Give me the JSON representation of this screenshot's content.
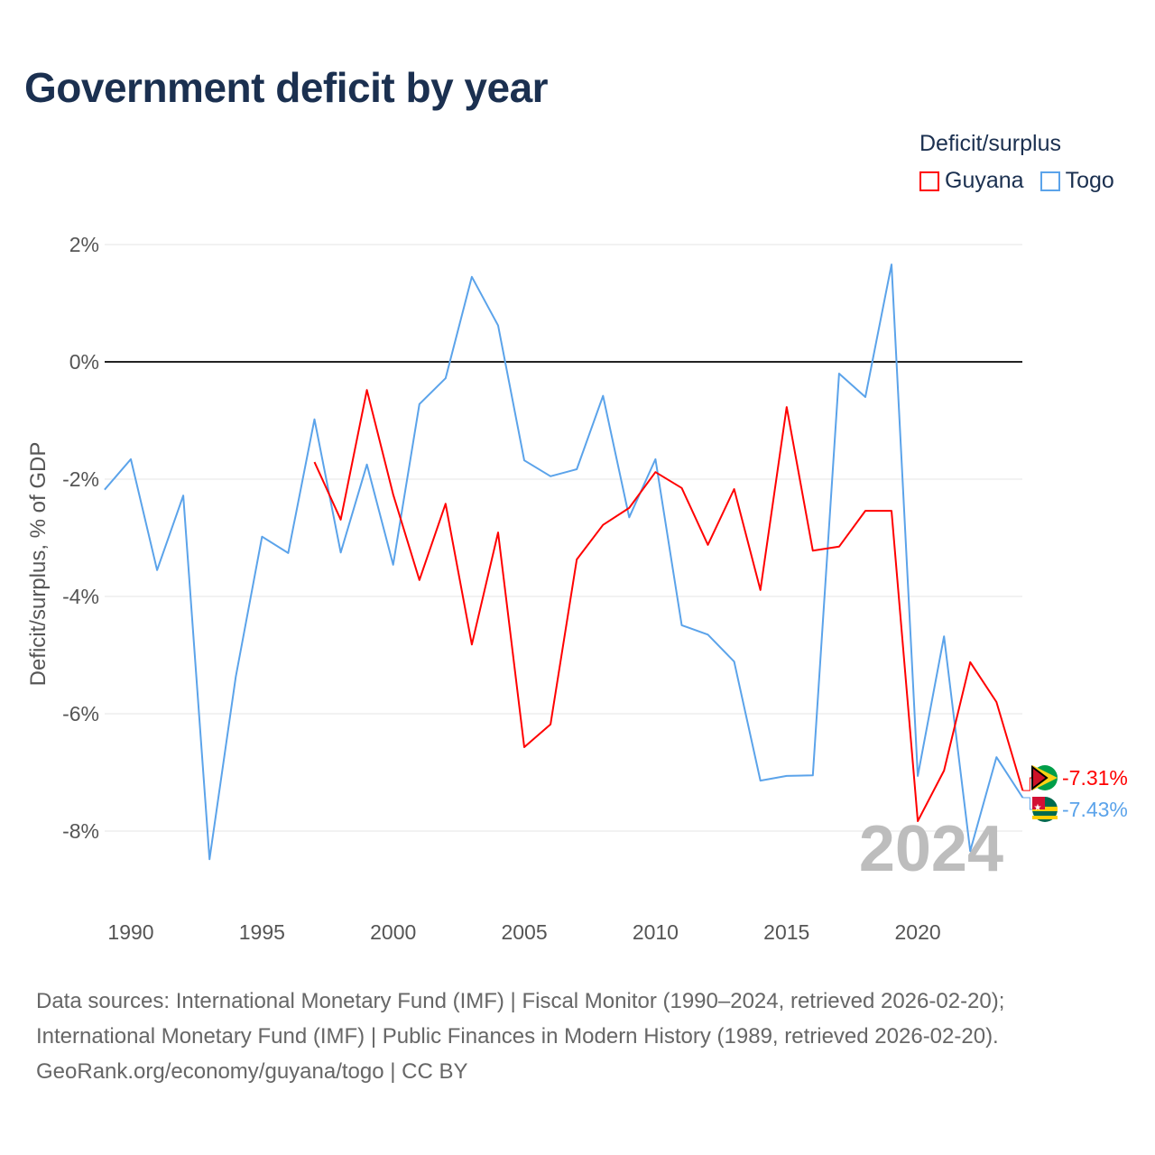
{
  "title": "Government deficit by year",
  "legend": {
    "title": "Deficit/surplus",
    "items": [
      {
        "name": "Guyana",
        "color": "#ff0000"
      },
      {
        "name": "Togo",
        "color": "#5ba3ea"
      }
    ]
  },
  "chart_data": {
    "type": "line",
    "title": "Government deficit by year",
    "xlabel": "",
    "ylabel": "Deficit/surplus, % of GDP",
    "ylim": [
      -9.2,
      2.3
    ],
    "xlim": [
      1989,
      2024
    ],
    "grid": true,
    "legend_position": "top-right",
    "yticks": [
      2,
      0,
      -2,
      -4,
      -6,
      -8
    ],
    "ytick_labels": [
      "2%",
      "0%",
      "-2%",
      "-4%",
      "-6%",
      "-8%"
    ],
    "xticks": [
      1990,
      1995,
      2000,
      2005,
      2010,
      2015,
      2020
    ],
    "xtick_labels": [
      "1990",
      "1995",
      "2000",
      "2005",
      "2010",
      "2015",
      "2020"
    ],
    "annotation": "2024",
    "series": [
      {
        "name": "Guyana",
        "color": "#ff0000",
        "end_label": "-7.31%",
        "x": [
          1997,
          1998,
          1999,
          2000,
          2001,
          2002,
          2003,
          2004,
          2005,
          2006,
          2007,
          2008,
          2009,
          2010,
          2011,
          2012,
          2013,
          2014,
          2015,
          2016,
          2017,
          2018,
          2019,
          2020,
          2021,
          2022,
          2023,
          2024
        ],
        "values": [
          -1.71,
          -2.69,
          -0.48,
          -2.26,
          -3.72,
          -2.42,
          -4.82,
          -2.91,
          -6.57,
          -6.18,
          -3.37,
          -2.78,
          -2.49,
          -1.88,
          -2.15,
          -3.12,
          -2.17,
          -3.89,
          -0.77,
          -3.22,
          -3.15,
          -2.54,
          -2.54,
          -7.83,
          -6.97,
          -5.12,
          -5.8,
          -7.31
        ]
      },
      {
        "name": "Togo",
        "color": "#5ba3ea",
        "end_label": "-7.43%",
        "x": [
          1989,
          1990,
          1991,
          1992,
          1993,
          1994,
          1995,
          1996,
          1997,
          1998,
          1999,
          2000,
          2001,
          2002,
          2003,
          2004,
          2005,
          2006,
          2007,
          2008,
          2009,
          2010,
          2011,
          2012,
          2013,
          2014,
          2015,
          2016,
          2017,
          2018,
          2019,
          2020,
          2021,
          2022,
          2023,
          2024
        ],
        "values": [
          -2.18,
          -1.66,
          -3.55,
          -2.28,
          -8.48,
          -5.37,
          -2.98,
          -3.26,
          -0.98,
          -3.25,
          -1.75,
          -3.46,
          -0.72,
          -0.28,
          1.45,
          0.62,
          -1.68,
          -1.95,
          -1.83,
          -0.58,
          -2.65,
          -1.66,
          -4.49,
          -4.65,
          -5.11,
          -7.14,
          -7.06,
          -7.05,
          -0.2,
          -0.6,
          1.66,
          -7.06,
          -4.68,
          -8.34,
          -6.74,
          -7.43
        ]
      }
    ]
  },
  "footer": {
    "line1": "Data sources: International Monetary Fund (IMF) | Fiscal Monitor (1990–2024, retrieved 2026-02-20);",
    "line2": "International Monetary Fund (IMF) | Public Finances in Modern History (1989, retrieved 2026-02-20).",
    "line3": "GeoRank.org/economy/guyana/togo | CC BY"
  }
}
